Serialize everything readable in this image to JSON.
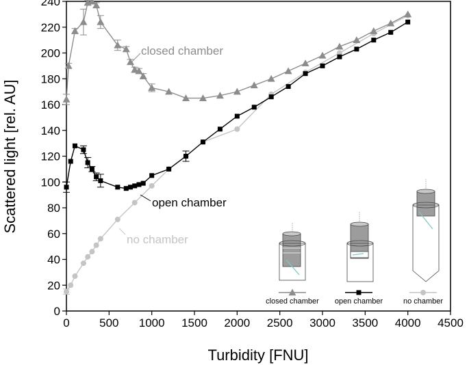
{
  "chart_data": {
    "type": "line",
    "xlabel": "Turbidity [FNU]",
    "ylabel": "Scattered light [rel. AU]",
    "xlim": [
      0,
      4500
    ],
    "ylim": [
      0,
      240
    ],
    "xticks": [
      0,
      500,
      1000,
      1500,
      2000,
      2500,
      3000,
      3500,
      4000,
      4500
    ],
    "yticks": [
      0,
      20,
      40,
      60,
      80,
      100,
      120,
      140,
      160,
      180,
      200,
      220,
      240
    ],
    "grid": false,
    "colors": {
      "closed": "#8c8c8c",
      "open": "#000000",
      "none": "#c4c4c4"
    },
    "series": [
      {
        "name": "closed chamber",
        "marker": "triangle",
        "x": [
          0,
          25,
          100,
          200,
          250,
          300,
          350,
          400,
          600,
          700,
          750,
          800,
          850,
          900,
          1000,
          1200,
          1400,
          1600,
          1800,
          2000,
          2200,
          2400,
          2600,
          2800,
          3000,
          3200,
          3400,
          3600,
          3800,
          4000
        ],
        "y": [
          164,
          190,
          217,
          224,
          239,
          240,
          237,
          224,
          206,
          203,
          193,
          187,
          186,
          182,
          173,
          170,
          165,
          165,
          167,
          170,
          175,
          180,
          186,
          192,
          198,
          205,
          210,
          217,
          223,
          230
        ],
        "err": [
          4,
          2,
          2,
          10,
          2,
          2,
          2,
          5,
          4,
          2,
          2,
          2,
          2,
          2,
          3,
          1,
          1,
          1,
          1,
          1,
          1,
          1,
          1,
          1,
          1,
          1,
          1,
          1,
          1,
          1
        ]
      },
      {
        "name": "open chamber",
        "marker": "square",
        "x": [
          0,
          50,
          100,
          200,
          250,
          300,
          350,
          400,
          600,
          700,
          750,
          800,
          850,
          900,
          1000,
          1200,
          1400,
          1600,
          1800,
          2000,
          2200,
          2400,
          2600,
          2800,
          3000,
          3200,
          3400,
          3600,
          3800,
          4000
        ],
        "y": [
          96,
          116,
          128,
          125,
          115,
          110,
          104,
          101,
          96,
          95,
          96,
          97,
          98,
          99,
          105,
          110,
          120,
          131,
          141,
          151,
          158,
          166,
          174,
          184,
          190,
          197,
          203,
          210,
          216,
          224
        ],
        "err": [
          4,
          1,
          1,
          3,
          4,
          2,
          3,
          5,
          1,
          1,
          1,
          1,
          1,
          1,
          1,
          1,
          4,
          1,
          1,
          1,
          1,
          1,
          1,
          1,
          1,
          1,
          1,
          1,
          1,
          1
        ]
      },
      {
        "name": "no chamber",
        "marker": "circle",
        "x": [
          0,
          50,
          100,
          200,
          250,
          300,
          350,
          400,
          600,
          800,
          1000,
          1200,
          1400,
          1600,
          2000,
          2400,
          2800,
          3200,
          3600,
          4000
        ],
        "y": [
          15,
          20,
          27,
          37,
          42,
          46,
          51,
          56,
          71,
          84,
          97,
          110,
          120,
          131,
          141,
          168,
          185,
          200,
          215,
          229
        ],
        "err": [
          2,
          1,
          1,
          1,
          1,
          1,
          1,
          1,
          1,
          1,
          1,
          1,
          1,
          1,
          1,
          1,
          1,
          1,
          1,
          1
        ]
      }
    ],
    "annotations": [
      {
        "text": "closed chamber",
        "series": 0
      },
      {
        "text": "open chamber",
        "series": 1
      },
      {
        "text": "no chamber",
        "series": 2
      }
    ],
    "legend": {
      "placement": "bottom-right",
      "items": [
        "closed chamber",
        "open chamber",
        "no chamber"
      ]
    }
  }
}
